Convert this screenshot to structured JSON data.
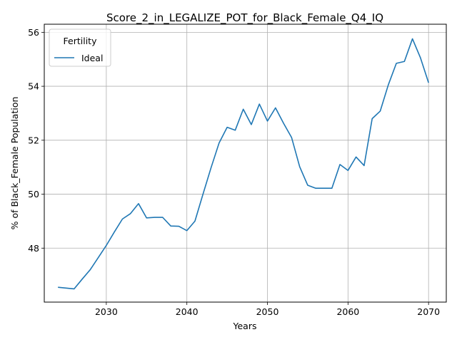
{
  "chart_data": {
    "type": "line",
    "title": "Score_2_in_LEGALIZE_POT_for_Black_Female_Q4_IQ",
    "xlabel": "Years",
    "ylabel": "% of Black_Female Population",
    "xlim": [
      2022.3,
      2072.2
    ],
    "ylim": [
      46.0,
      56.3
    ],
    "x_ticks": [
      2030,
      2040,
      2050,
      2060,
      2070
    ],
    "y_ticks": [
      48,
      50,
      52,
      54,
      56
    ],
    "grid": true,
    "legend": {
      "title": "Fertility",
      "placement": "top-left"
    },
    "series": [
      {
        "name": "Ideal",
        "color": "#1f77b4",
        "x": [
          2024,
          2025,
          2026,
          2027,
          2028,
          2029,
          2030,
          2031,
          2032,
          2033,
          2034,
          2035,
          2036,
          2037,
          2038,
          2039,
          2040,
          2041,
          2042,
          2043,
          2044,
          2045,
          2046,
          2047,
          2048,
          2049,
          2050,
          2051,
          2052,
          2053,
          2054,
          2055,
          2056,
          2057,
          2058,
          2059,
          2060,
          2061,
          2062,
          2063,
          2064,
          2065,
          2066,
          2067,
          2068,
          2069,
          2070
        ],
        "values": [
          46.55,
          46.52,
          46.49,
          46.85,
          47.2,
          47.65,
          48.1,
          48.6,
          49.08,
          49.28,
          49.65,
          49.12,
          49.14,
          49.14,
          48.82,
          48.81,
          48.65,
          49.0,
          50.0,
          50.98,
          51.9,
          52.48,
          52.37,
          53.15,
          52.58,
          53.34,
          52.71,
          53.2,
          52.63,
          52.1,
          51.02,
          50.33,
          50.22,
          50.22,
          50.22,
          51.1,
          50.88,
          51.38,
          51.06,
          52.8,
          53.08,
          54.05,
          54.85,
          54.92,
          55.76,
          55.05,
          54.13
        ]
      }
    ]
  }
}
